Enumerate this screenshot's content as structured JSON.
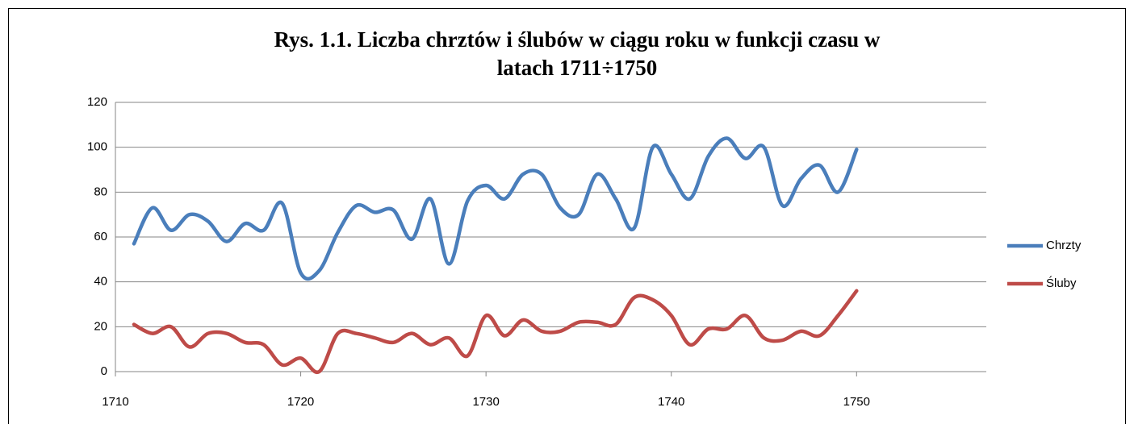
{
  "chart_data": {
    "type": "line",
    "title": [
      "Rys. 1.1. Liczba chrztów i ślubów w ciągu roku w funkcji czasu w",
      "latach 1711÷1750"
    ],
    "x": [
      1711,
      1712,
      1713,
      1714,
      1715,
      1716,
      1717,
      1718,
      1719,
      1720,
      1721,
      1722,
      1723,
      1724,
      1725,
      1726,
      1727,
      1728,
      1729,
      1730,
      1731,
      1732,
      1733,
      1734,
      1735,
      1736,
      1737,
      1738,
      1739,
      1740,
      1741,
      1742,
      1743,
      1744,
      1745,
      1746,
      1747,
      1748,
      1749,
      1750
    ],
    "series": [
      {
        "name": "Chrzty",
        "color": "#4a7ebb",
        "values": [
          57,
          73,
          63,
          70,
          67,
          58,
          66,
          63,
          75,
          44,
          45,
          62,
          74,
          71,
          72,
          59,
          77,
          48,
          76,
          83,
          77,
          88,
          88,
          73,
          70,
          88,
          77,
          64,
          100,
          88,
          77,
          96,
          104,
          95,
          100,
          74,
          86,
          92,
          80,
          99
        ]
      },
      {
        "name": "Śluby",
        "color": "#be4b48",
        "values": [
          21,
          17,
          20,
          11,
          17,
          17,
          13,
          12,
          3,
          6,
          0,
          17,
          17,
          15,
          13,
          17,
          12,
          15,
          7,
          25,
          16,
          23,
          18,
          18,
          22,
          22,
          21,
          33,
          32,
          25,
          12,
          19,
          19,
          25,
          15,
          14,
          18,
          16,
          25,
          36
        ]
      }
    ],
    "xlim": [
      1710,
      1757
    ],
    "xticks": [
      1710,
      1720,
      1730,
      1740,
      1750
    ],
    "ylim": [
      0,
      120
    ],
    "yticks": [
      0,
      20,
      40,
      60,
      80,
      100,
      120
    ],
    "grid": true,
    "smooth": true,
    "legend": "right"
  }
}
